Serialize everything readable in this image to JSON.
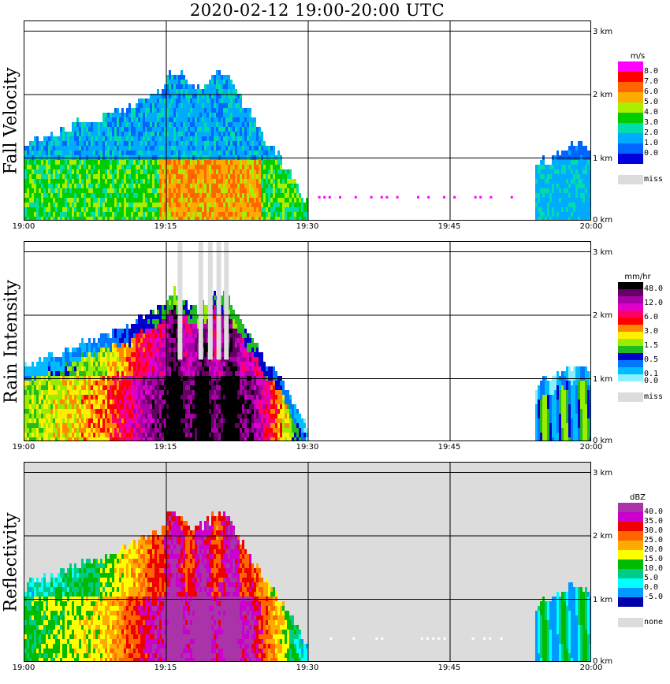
{
  "title": "2020-02-12   19:00-20:00 UTC",
  "x_ticks": [
    "19:00",
    "19:15",
    "19:30",
    "19:45",
    "20:00"
  ],
  "height_ticks": [
    "3 km",
    "2 km",
    "1 km",
    "0 km"
  ],
  "missing_color": "#dcdcdc",
  "panels": [
    {
      "id": "fall",
      "ylabel": "Fall Velocity",
      "unit": "m/s",
      "background": "#ffffff",
      "colors": [
        "#ff00ff",
        "#ff0000",
        "#ff6600",
        "#ffaa00",
        "#aaee00",
        "#00cc00",
        "#00ddaa",
        "#00aaff",
        "#0066ff",
        "#0000dd"
      ],
      "labels": [
        "8.0",
        "7.0",
        "6.0",
        "5.0",
        "4.0",
        "3.0",
        "2.0",
        "1.0",
        "0.0"
      ],
      "missing_label": "miss"
    },
    {
      "id": "rain",
      "ylabel": "Rain Intensity",
      "unit": "mm/hr",
      "background": "#ffffff",
      "colors": [
        "#000000",
        "#660066",
        "#aa00aa",
        "#dd00cc",
        "#ff0066",
        "#ff0000",
        "#ff8800",
        "#ffee00",
        "#99ee00",
        "#22bb22",
        "#0000cc",
        "#0077ff",
        "#00bbff",
        "#88f0ff"
      ],
      "labels": [
        "48.0",
        "",
        "12.0",
        "",
        "6.0",
        "",
        "3.0",
        "",
        "1.5",
        "",
        "0.5",
        "",
        "0.1",
        "0.0"
      ],
      "missing_label": "miss"
    },
    {
      "id": "refl",
      "ylabel": "Reflectivity",
      "unit": "dBZ",
      "background": "#dcdcdc",
      "colors": [
        "#aa33aa",
        "#cc00cc",
        "#ee0000",
        "#ff6600",
        "#ffaa00",
        "#ffff00",
        "#00bb00",
        "#00cc88",
        "#00ffff",
        "#0099ff",
        "#0000aa"
      ],
      "labels": [
        "40.0",
        "35.0",
        "30.0",
        "25.0",
        "20.0",
        "15.0",
        "10.0",
        "5.0",
        "0.0",
        "-5.0"
      ],
      "missing_label": "none"
    }
  ],
  "chart_data": [
    {
      "type": "heatmap",
      "title": "2020-02-12   19:00-20:00 UTC",
      "ylabel": "Fall Velocity",
      "x": [
        "19:00",
        "19:15",
        "19:30",
        "19:45",
        "20:00"
      ],
      "xlim": [
        "19:00",
        "20:00"
      ],
      "ylim_km": [
        0,
        3
      ],
      "yticks_km": [
        0,
        1,
        2,
        3
      ],
      "colorbar_unit": "m/s",
      "colorbar_levels": [
        8.0,
        7.0,
        6.0,
        5.0,
        4.0,
        3.0,
        2.0,
        1.0,
        0.0
      ],
      "grid": true
    },
    {
      "type": "heatmap",
      "title": "",
      "ylabel": "Rain Intensity",
      "x": [
        "19:00",
        "19:15",
        "19:30",
        "19:45",
        "20:00"
      ],
      "xlim": [
        "19:00",
        "20:00"
      ],
      "ylim_km": [
        0,
        3
      ],
      "yticks_km": [
        0,
        1,
        2,
        3
      ],
      "colorbar_unit": "mm/hr",
      "colorbar_levels": [
        48.0,
        12.0,
        6.0,
        3.0,
        1.5,
        0.5,
        0.1,
        0.0
      ],
      "grid": true
    },
    {
      "type": "heatmap",
      "title": "",
      "ylabel": "Reflectivity",
      "x": [
        "19:00",
        "19:15",
        "19:30",
        "19:45",
        "20:00"
      ],
      "xlim": [
        "19:00",
        "20:00"
      ],
      "ylim_km": [
        0,
        3
      ],
      "yticks_km": [
        0,
        1,
        2,
        3
      ],
      "colorbar_unit": "dBZ",
      "colorbar_levels": [
        40.0,
        35.0,
        30.0,
        25.0,
        20.0,
        15.0,
        10.0,
        5.0,
        0.0,
        -5.0
      ],
      "grid": true
    }
  ]
}
